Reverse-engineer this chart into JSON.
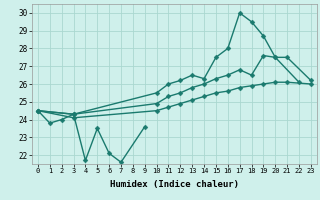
{
  "xlabel": "Humidex (Indice chaleur)",
  "line_color": "#1a7a6e",
  "bg_color": "#cff0eb",
  "grid_color": "#aad8d0",
  "xlim": [
    -0.5,
    23.5
  ],
  "ylim": [
    21.5,
    30.5
  ],
  "yticks": [
    22,
    23,
    24,
    25,
    26,
    27,
    28,
    29,
    30
  ],
  "linewidth": 1.0,
  "markersize": 2.5,
  "line1_x": [
    0,
    1,
    2,
    3,
    4,
    5,
    6,
    7,
    9
  ],
  "line1_y": [
    24.5,
    23.8,
    24.0,
    24.3,
    21.7,
    23.5,
    22.1,
    21.6,
    23.6
  ],
  "line2_x": [
    0,
    3,
    10,
    11,
    12,
    13,
    14,
    15,
    16,
    17,
    18,
    19,
    20,
    22
  ],
  "line2_y": [
    24.5,
    24.3,
    25.5,
    26.0,
    26.2,
    26.5,
    26.3,
    27.5,
    28.0,
    30.0,
    29.5,
    28.7,
    27.5,
    26.1
  ],
  "line3_x": [
    0,
    3,
    10,
    11,
    12,
    13,
    14,
    15,
    16,
    17,
    18,
    19,
    20,
    21,
    23
  ],
  "line3_y": [
    24.5,
    24.3,
    24.9,
    25.3,
    25.5,
    25.8,
    26.0,
    26.3,
    26.5,
    26.8,
    26.5,
    27.6,
    27.5,
    27.5,
    26.2
  ],
  "line4_x": [
    0,
    3,
    10,
    11,
    12,
    13,
    14,
    15,
    16,
    17,
    18,
    19,
    20,
    21,
    23
  ],
  "line4_y": [
    24.5,
    24.1,
    24.5,
    24.7,
    24.9,
    25.1,
    25.3,
    25.5,
    25.6,
    25.8,
    25.9,
    26.0,
    26.1,
    26.1,
    26.0
  ]
}
